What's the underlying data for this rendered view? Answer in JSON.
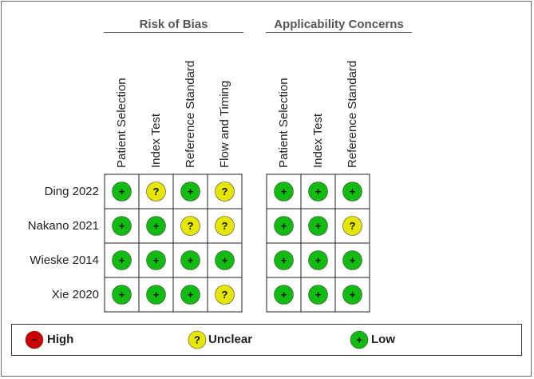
{
  "chart_data": {
    "type": "table",
    "groups": [
      {
        "title": "Risk of Bias",
        "domains": [
          "Patient Selection",
          "Index Test",
          "Reference Standard",
          "Flow and Timing"
        ]
      },
      {
        "title": "Applicability Concerns",
        "domains": [
          "Patient Selection",
          "Index Test",
          "Reference Standard"
        ]
      }
    ],
    "studies": [
      "Ding 2022",
      "Nakano 2021",
      "Wieske 2014",
      "Xie 2020"
    ],
    "risk_of_bias": [
      [
        "low",
        "unclear",
        "low",
        "unclear"
      ],
      [
        "low",
        "low",
        "unclear",
        "unclear"
      ],
      [
        "low",
        "low",
        "low",
        "low"
      ],
      [
        "low",
        "low",
        "low",
        "unclear"
      ]
    ],
    "applicability": [
      [
        "low",
        "low",
        "low"
      ],
      [
        "low",
        "low",
        "unclear"
      ],
      [
        "low",
        "low",
        "low"
      ],
      [
        "low",
        "low",
        "low"
      ]
    ],
    "legend": [
      {
        "key": "high",
        "label": "High",
        "symbol": "−",
        "color": "#cc0000"
      },
      {
        "key": "unclear",
        "label": "Unclear",
        "symbol": "?",
        "color": "#e6e600"
      },
      {
        "key": "low",
        "label": "Low",
        "symbol": "+",
        "color": "#11bb11"
      }
    ]
  }
}
